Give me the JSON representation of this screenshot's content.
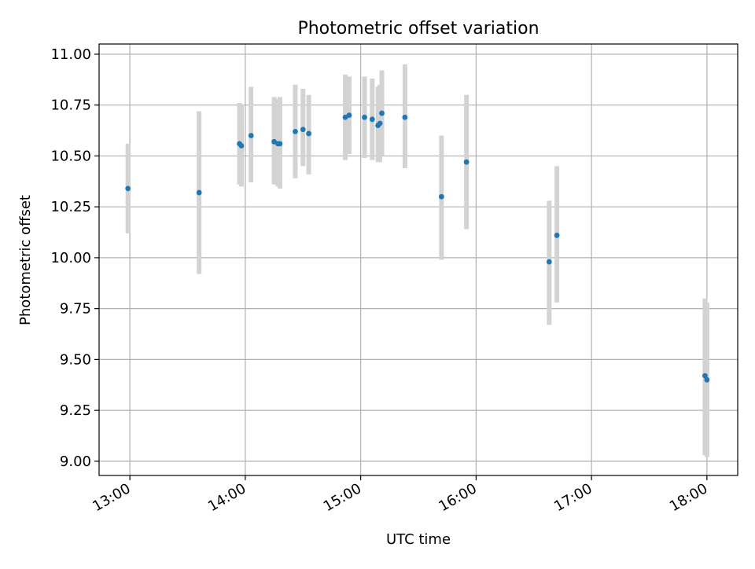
{
  "chart_data": {
    "type": "scatter",
    "title": "Photometric offset variation",
    "xlabel": "UTC time",
    "ylabel": "Photometric offset",
    "x_axis": "time",
    "xlim": [
      "12:44",
      "18:16"
    ],
    "ylim": [
      8.93,
      11.05
    ],
    "xticks": [
      "13:00",
      "14:00",
      "15:00",
      "16:00",
      "17:00",
      "18:00"
    ],
    "yticks": [
      "9.00",
      "9.25",
      "9.50",
      "9.75",
      "10.00",
      "10.25",
      "10.50",
      "10.75",
      "11.00"
    ],
    "grid": true,
    "marker_color": "#1f77b4",
    "errorbar_color": "#d3d3d3",
    "points": [
      {
        "time": "12:59",
        "y": 10.34,
        "err_low": 10.12,
        "err_high": 10.56
      },
      {
        "time": "13:36",
        "y": 10.32,
        "err_low": 9.92,
        "err_high": 10.72
      },
      {
        "time": "13:57",
        "y": 10.56,
        "err_low": 10.36,
        "err_high": 10.76
      },
      {
        "time": "13:58",
        "y": 10.55,
        "err_low": 10.35,
        "err_high": 10.75
      },
      {
        "time": "14:03",
        "y": 10.6,
        "err_low": 10.37,
        "err_high": 10.84
      },
      {
        "time": "14:15",
        "y": 10.57,
        "err_low": 10.36,
        "err_high": 10.79
      },
      {
        "time": "14:17",
        "y": 10.56,
        "err_low": 10.35,
        "err_high": 10.78
      },
      {
        "time": "14:18",
        "y": 10.56,
        "err_low": 10.34,
        "err_high": 10.79
      },
      {
        "time": "14:26",
        "y": 10.62,
        "err_low": 10.39,
        "err_high": 10.85
      },
      {
        "time": "14:30",
        "y": 10.63,
        "err_low": 10.45,
        "err_high": 10.83
      },
      {
        "time": "14:33",
        "y": 10.61,
        "err_low": 10.41,
        "err_high": 10.8
      },
      {
        "time": "14:52",
        "y": 10.69,
        "err_low": 10.48,
        "err_high": 10.9
      },
      {
        "time": "14:54",
        "y": 10.7,
        "err_low": 10.51,
        "err_high": 10.89
      },
      {
        "time": "15:02",
        "y": 10.69,
        "err_low": 10.49,
        "err_high": 10.89
      },
      {
        "time": "15:06",
        "y": 10.68,
        "err_low": 10.48,
        "err_high": 10.88
      },
      {
        "time": "15:09",
        "y": 10.65,
        "err_low": 10.47,
        "err_high": 10.84
      },
      {
        "time": "15:10",
        "y": 10.66,
        "err_low": 10.47,
        "err_high": 10.85
      },
      {
        "time": "15:11",
        "y": 10.71,
        "err_low": 10.5,
        "err_high": 10.92
      },
      {
        "time": "15:23",
        "y": 10.69,
        "err_low": 10.44,
        "err_high": 10.95
      },
      {
        "time": "15:42",
        "y": 10.3,
        "err_low": 9.99,
        "err_high": 10.6
      },
      {
        "time": "15:55",
        "y": 10.47,
        "err_low": 10.14,
        "err_high": 10.8
      },
      {
        "time": "16:38",
        "y": 9.98,
        "err_low": 9.67,
        "err_high": 10.28
      },
      {
        "time": "16:42",
        "y": 10.11,
        "err_low": 9.78,
        "err_high": 10.45
      },
      {
        "time": "17:59",
        "y": 9.42,
        "err_low": 9.03,
        "err_high": 9.8
      },
      {
        "time": "18:00",
        "y": 9.4,
        "err_low": 9.02,
        "err_high": 9.78
      }
    ]
  }
}
